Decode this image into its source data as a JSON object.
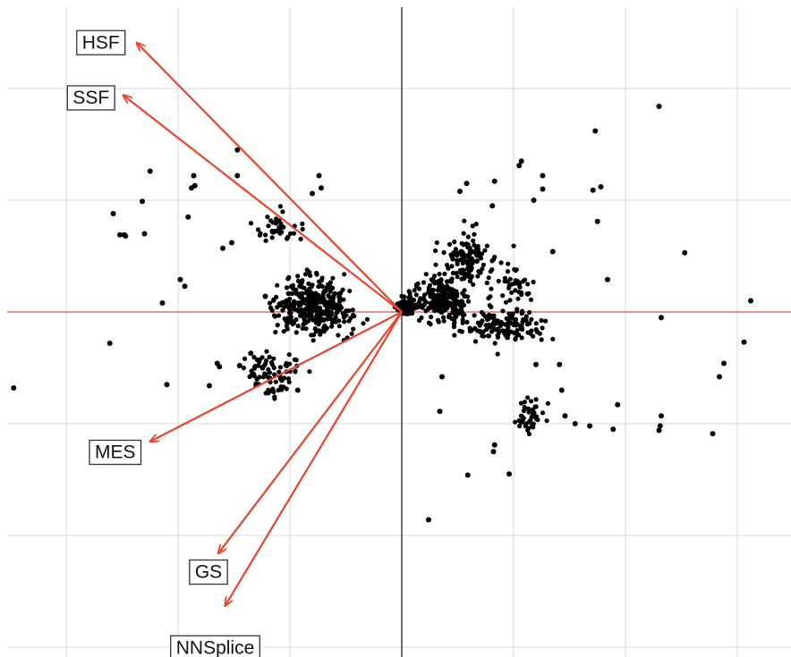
{
  "chart_data": {
    "type": "scatter",
    "title": "",
    "xlabel": "",
    "ylabel": "",
    "xlim": [
      -3.6,
      3.5
    ],
    "ylim": [
      -3.1,
      2.8
    ],
    "grid": true,
    "colors": {
      "points": "#000000",
      "axes": "#e8553e",
      "vectors": "#e8442e",
      "grid": "#d9d9d9",
      "origin_vline": "#222222"
    },
    "vectors": [
      {
        "label": "HSF",
        "x": -2.37,
        "y": 2.41
      },
      {
        "label": "SSF",
        "x": -2.49,
        "y": 1.94
      },
      {
        "label": "MES",
        "x": -2.25,
        "y": -1.16
      },
      {
        "label": "GS",
        "x": -1.64,
        "y": -2.16
      },
      {
        "label": "NNSplice",
        "x": -1.58,
        "y": -2.63
      }
    ],
    "points": [
      [
        2.3,
        1.84
      ],
      [
        1.73,
        1.62
      ],
      [
        2.53,
        0.53
      ],
      [
        3.12,
        0.1
      ],
      [
        2.32,
        -0.05
      ],
      [
        3.06,
        -0.27
      ],
      [
        2.88,
        -0.46
      ],
      [
        2.84,
        -0.58
      ],
      [
        2.32,
        -0.93
      ],
      [
        2.31,
        -1.02
      ],
      [
        2.3,
        -1.06
      ],
      [
        2.78,
        -1.09
      ],
      [
        1.89,
        -1.05
      ],
      [
        1.68,
        -1.02
      ],
      [
        1.55,
        -1.0
      ],
      [
        1.46,
        -0.93
      ],
      [
        1.93,
        -0.83
      ],
      [
        1.43,
        -0.7
      ],
      [
        0.96,
        -1.45
      ],
      [
        0.82,
        -1.25
      ],
      [
        0.83,
        -1.19
      ],
      [
        0.59,
        -1.46
      ],
      [
        0.34,
        -0.89
      ],
      [
        0.36,
        -0.58
      ],
      [
        1.41,
        -0.47
      ],
      [
        1.2,
        -0.47
      ],
      [
        0.24,
        -1.86
      ],
      [
        1.75,
        0.81
      ],
      [
        1.78,
        1.12
      ],
      [
        1.26,
        1.1
      ],
      [
        1.71,
        1.09
      ],
      [
        1.84,
        0.29
      ],
      [
        1.18,
        1.0
      ],
      [
        1.26,
        1.22
      ],
      [
        0.58,
        1.15
      ],
      [
        0.83,
        1.17
      ],
      [
        1.05,
        1.31
      ],
      [
        1.07,
        1.35
      ],
      [
        0.52,
        1.08
      ],
      [
        0.81,
        0.95
      ],
      [
        1.35,
        0.54
      ],
      [
        -1.47,
        1.45
      ],
      [
        -2.25,
        1.26
      ],
      [
        -1.47,
        1.22
      ],
      [
        -0.74,
        1.22
      ],
      [
        -0.72,
        1.11
      ],
      [
        -0.8,
        1.06
      ],
      [
        -1.85,
        1.13
      ],
      [
        -1.88,
        1.11
      ],
      [
        -2.32,
        0.99
      ],
      [
        -2.52,
        0.69
      ],
      [
        -2.48,
        0.69
      ],
      [
        -3.47,
        -0.68
      ],
      [
        -2.61,
        -0.28
      ],
      [
        -2.1,
        -0.65
      ],
      [
        -1.72,
        -0.66
      ],
      [
        -1.63,
        -0.49
      ],
      [
        -1.65,
        -0.46
      ],
      [
        -1.45,
        -0.48
      ],
      [
        -1.35,
        -0.37
      ],
      [
        -1.08,
        -0.6
      ],
      [
        -1.94,
        0.23
      ],
      [
        -1.98,
        0.29
      ],
      [
        -2.14,
        0.08
      ],
      [
        -2.3,
        0.7
      ],
      [
        -1.6,
        0.57
      ],
      [
        -1.52,
        0.62
      ],
      [
        -1.91,
        0.85
      ],
      [
        -1.86,
        1.22
      ],
      [
        -1.22,
        0.14
      ],
      [
        -0.93,
        -0.7
      ],
      [
        -2.47,
        0.68
      ],
      [
        -2.58,
        0.88
      ]
    ]
  }
}
